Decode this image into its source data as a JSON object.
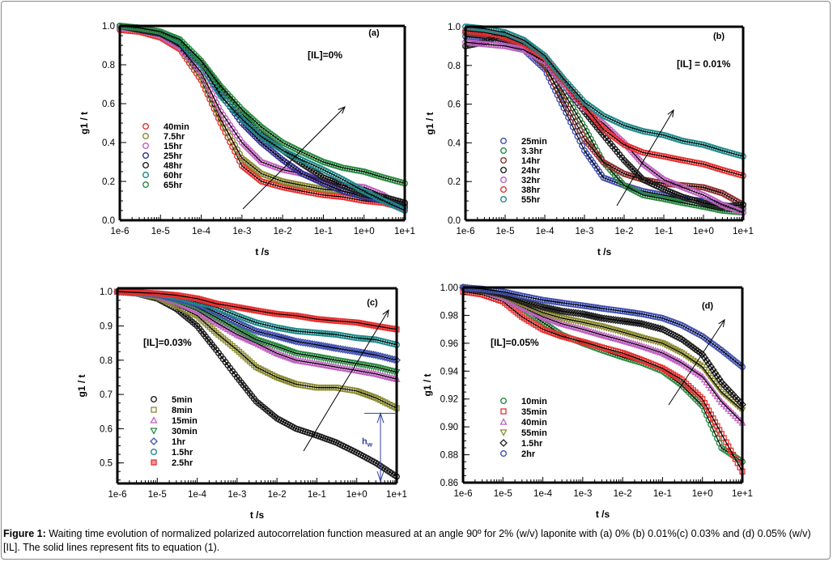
{
  "caption": {
    "label": "Figure 1:",
    "text": " Waiting time evolution of normalized polarized autocorrelation function measured at an angle 90º for 2% (w/v) laponite with (a) 0% (b) 0.01%(c) 0.03% and (d) 0.05% (w/v) [IL]. The solid lines represent fits to equation (1)."
  },
  "chart_data": [
    {
      "type": "scatter",
      "panel": "(a)",
      "annotation": "[IL]=0%",
      "xlabel": "t /s",
      "ylabel": "g1 / t",
      "xscale": "log",
      "xlim": [
        1e-06,
        10
      ],
      "ylim": [
        0.0,
        1.0
      ],
      "xticks": [
        "1e-6",
        "1e-5",
        "1e-4",
        "1e-3",
        "1e-2",
        "1e-1",
        "1e+0",
        "1e+1"
      ],
      "yticks": [
        "0.0",
        "0.2",
        "0.4",
        "0.6",
        "0.8",
        "1.0"
      ],
      "legend_position": "center-left",
      "x": [
        1e-06,
        3e-06,
        1e-05,
        3e-05,
        0.0001,
        0.0003,
        0.001,
        0.003,
        0.01,
        0.03,
        0.1,
        0.3,
        1,
        3,
        10
      ],
      "series": [
        {
          "name": "40min",
          "color": "#e83030",
          "marker": "circle",
          "values": [
            0.98,
            0.97,
            0.94,
            0.88,
            0.72,
            0.5,
            0.28,
            0.2,
            0.17,
            0.15,
            0.13,
            0.12,
            0.1,
            0.09,
            0.06
          ]
        },
        {
          "name": "7.5hr",
          "color": "#8a8a30",
          "marker": "circle",
          "values": [
            0.99,
            0.98,
            0.95,
            0.89,
            0.74,
            0.52,
            0.32,
            0.24,
            0.2,
            0.18,
            0.16,
            0.15,
            0.13,
            0.11,
            0.08
          ]
        },
        {
          "name": "15hr",
          "color": "#c060c0",
          "marker": "circle",
          "values": [
            0.99,
            0.98,
            0.95,
            0.89,
            0.76,
            0.56,
            0.4,
            0.3,
            0.26,
            0.24,
            0.2,
            0.18,
            0.17,
            0.13,
            0.05
          ]
        },
        {
          "name": "25hr",
          "color": "#303090",
          "marker": "circle",
          "values": [
            1.0,
            0.98,
            0.96,
            0.91,
            0.8,
            0.65,
            0.5,
            0.4,
            0.31,
            0.24,
            0.19,
            0.15,
            0.12,
            0.1,
            0.07
          ]
        },
        {
          "name": "48hr",
          "color": "#202020",
          "marker": "circle",
          "values": [
            1.0,
            0.98,
            0.96,
            0.91,
            0.81,
            0.68,
            0.55,
            0.44,
            0.36,
            0.29,
            0.22,
            0.18,
            0.14,
            0.12,
            0.09
          ]
        },
        {
          "name": "60hr",
          "color": "#208a8a",
          "marker": "circle",
          "values": [
            1.0,
            0.99,
            0.97,
            0.92,
            0.8,
            0.64,
            0.52,
            0.43,
            0.36,
            0.31,
            0.26,
            0.21,
            0.15,
            0.1,
            0.05
          ]
        },
        {
          "name": "65hr",
          "color": "#2a8a40",
          "marker": "circle",
          "values": [
            1.0,
            0.99,
            0.97,
            0.93,
            0.82,
            0.69,
            0.57,
            0.48,
            0.4,
            0.35,
            0.3,
            0.27,
            0.25,
            0.22,
            0.19
          ]
        }
      ]
    },
    {
      "type": "scatter",
      "panel": "(b)",
      "annotation": "[IL] = 0.01%",
      "xlabel": "t /s",
      "ylabel": "g1 / t",
      "xscale": "log",
      "xlim": [
        1e-06,
        10
      ],
      "ylim": [
        0.0,
        1.0
      ],
      "xticks": [
        "1e-6",
        "1e-5",
        "1e-4",
        "1e-3",
        "1e-2",
        "1e-1",
        "1e+0",
        "1e+1"
      ],
      "yticks": [
        "0.0",
        "0.2",
        "0.4",
        "0.6",
        "0.8",
        "1.0"
      ],
      "legend_position": "bottom-left",
      "x": [
        1e-06,
        3e-06,
        1e-05,
        3e-05,
        0.0001,
        0.0003,
        0.001,
        0.003,
        0.01,
        0.03,
        0.1,
        0.3,
        1,
        3,
        10
      ],
      "series": [
        {
          "name": "25min",
          "color": "#4050b0",
          "marker": "circle",
          "values": [
            0.95,
            0.94,
            0.92,
            0.88,
            0.78,
            0.58,
            0.36,
            0.22,
            0.18,
            0.15,
            0.13,
            0.11,
            0.1,
            0.08,
            0.06
          ]
        },
        {
          "name": "3.3hr",
          "color": "#2a8a40",
          "marker": "circle",
          "values": [
            0.97,
            0.96,
            0.94,
            0.9,
            0.81,
            0.66,
            0.48,
            0.3,
            0.18,
            0.13,
            0.11,
            0.09,
            0.07,
            0.05,
            0.04
          ]
        },
        {
          "name": "14hr",
          "color": "#903030",
          "marker": "circle",
          "values": [
            0.97,
            0.96,
            0.94,
            0.9,
            0.8,
            0.62,
            0.42,
            0.3,
            0.24,
            0.21,
            0.19,
            0.18,
            0.17,
            0.14,
            0.08
          ]
        },
        {
          "name": "24hr",
          "color": "#202020",
          "marker": "circle",
          "values": [
            0.9,
            0.92,
            0.97,
            0.93,
            0.83,
            0.7,
            0.56,
            0.44,
            0.31,
            0.21,
            0.16,
            0.12,
            0.09,
            0.07,
            0.08
          ]
        },
        {
          "name": "32hr",
          "color": "#c060c0",
          "marker": "circle",
          "values": [
            0.92,
            0.91,
            0.9,
            0.88,
            0.82,
            0.7,
            0.58,
            0.5,
            0.4,
            0.29,
            0.21,
            0.17,
            0.13,
            0.08,
            0.04
          ]
        },
        {
          "name": "38hr",
          "color": "#e83030",
          "marker": "circle",
          "values": [
            0.98,
            0.97,
            0.95,
            0.91,
            0.84,
            0.72,
            0.59,
            0.47,
            0.39,
            0.35,
            0.33,
            0.31,
            0.29,
            0.26,
            0.23
          ]
        },
        {
          "name": "55hr",
          "color": "#208a8a",
          "marker": "circle",
          "values": [
            1.0,
            0.99,
            0.97,
            0.93,
            0.85,
            0.73,
            0.61,
            0.54,
            0.49,
            0.46,
            0.44,
            0.41,
            0.39,
            0.36,
            0.33
          ]
        }
      ]
    },
    {
      "type": "scatter",
      "panel": "(c)",
      "annotation": "[IL]=0.03%",
      "annotation_bracket": "hw",
      "xlabel": "t /s",
      "ylabel": "g1 / t",
      "xscale": "log",
      "xlim": [
        1e-06,
        10
      ],
      "ylim": [
        0.44,
        1.01
      ],
      "xticks": [
        "1e-6",
        "1e-5",
        "1e-4",
        "1e-3",
        "1e-2",
        "1e-1",
        "1e+0",
        "1e+1"
      ],
      "yticks": [
        "0.5",
        "0.6",
        "0.7",
        "0.8",
        "0.9",
        "1.0"
      ],
      "legend_position": "bottom-left",
      "x": [
        1e-06,
        3e-06,
        1e-05,
        3e-05,
        0.0001,
        0.0003,
        0.001,
        0.003,
        0.01,
        0.03,
        0.1,
        0.3,
        1,
        3,
        10
      ],
      "series": [
        {
          "name": "5min",
          "color": "#202020",
          "marker": "circle",
          "values": [
            1.0,
            0.995,
            0.98,
            0.95,
            0.9,
            0.83,
            0.75,
            0.68,
            0.63,
            0.6,
            0.58,
            0.56,
            0.53,
            0.5,
            0.46
          ]
        },
        {
          "name": "8min",
          "color": "#8a8a30",
          "marker": "square",
          "values": [
            1.0,
            0.995,
            0.985,
            0.96,
            0.93,
            0.88,
            0.83,
            0.78,
            0.75,
            0.73,
            0.72,
            0.72,
            0.71,
            0.69,
            0.66
          ]
        },
        {
          "name": "15min",
          "color": "#c060c0",
          "marker": "triangle-up",
          "values": [
            1.0,
            0.997,
            0.99,
            0.97,
            0.945,
            0.91,
            0.875,
            0.85,
            0.82,
            0.8,
            0.79,
            0.78,
            0.77,
            0.76,
            0.745
          ]
        },
        {
          "name": "30min",
          "color": "#2a8a40",
          "marker": "triangle-down",
          "values": [
            1.0,
            0.997,
            0.99,
            0.975,
            0.955,
            0.925,
            0.89,
            0.86,
            0.84,
            0.82,
            0.81,
            0.8,
            0.79,
            0.78,
            0.765
          ]
        },
        {
          "name": "1hr",
          "color": "#4050b0",
          "marker": "diamond",
          "values": [
            1.0,
            0.998,
            0.992,
            0.98,
            0.965,
            0.94,
            0.91,
            0.885,
            0.87,
            0.855,
            0.845,
            0.835,
            0.825,
            0.815,
            0.8
          ]
        },
        {
          "name": "1.5hr",
          "color": "#208a8a",
          "marker": "circle",
          "values": [
            1.0,
            0.998,
            0.994,
            0.985,
            0.97,
            0.955,
            0.93,
            0.91,
            0.895,
            0.885,
            0.88,
            0.875,
            0.865,
            0.86,
            0.845
          ]
        },
        {
          "name": "2.5hr",
          "color": "#e83030",
          "marker": "square-filled",
          "values": [
            1.0,
            0.998,
            0.995,
            0.99,
            0.98,
            0.965,
            0.955,
            0.945,
            0.935,
            0.93,
            0.92,
            0.915,
            0.91,
            0.9,
            0.89
          ]
        }
      ]
    },
    {
      "type": "scatter",
      "panel": "(d)",
      "annotation": "[IL]=0.05%",
      "xlabel": "t /s",
      "ylabel": "g1 / t",
      "xscale": "log",
      "xlim": [
        1e-06,
        10
      ],
      "ylim": [
        0.86,
        1.0
      ],
      "xticks": [
        "1e-6",
        "1e-5",
        "1e-4",
        "1e-3",
        "1e-2",
        "1e-1",
        "1e+0",
        "1e+1"
      ],
      "yticks": [
        "0.86",
        "0.88",
        "0.90",
        "0.92",
        "0.94",
        "0.96",
        "0.98",
        "1.00"
      ],
      "legend_position": "bottom-left",
      "x": [
        1e-06,
        3e-06,
        1e-05,
        3e-05,
        0.0001,
        0.0003,
        0.001,
        0.003,
        0.01,
        0.03,
        0.1,
        0.3,
        1,
        3,
        10
      ],
      "series": [
        {
          "name": "10min",
          "color": "#2a8a40",
          "marker": "circle",
          "values": [
            1.0,
            0.998,
            0.993,
            0.985,
            0.975,
            0.966,
            0.96,
            0.955,
            0.95,
            0.946,
            0.94,
            0.93,
            0.915,
            0.885,
            0.875
          ]
        },
        {
          "name": "35min",
          "color": "#e83030",
          "marker": "square",
          "values": [
            0.997,
            0.995,
            0.99,
            0.979,
            0.97,
            0.965,
            0.961,
            0.957,
            0.953,
            0.948,
            0.942,
            0.934,
            0.92,
            0.895,
            0.868
          ]
        },
        {
          "name": "40min",
          "color": "#c060c0",
          "marker": "triangle-up",
          "values": [
            1.0,
            0.998,
            0.993,
            0.986,
            0.979,
            0.974,
            0.97,
            0.966,
            0.962,
            0.958,
            0.953,
            0.946,
            0.936,
            0.918,
            0.903
          ]
        },
        {
          "name": "55min",
          "color": "#8a8a30",
          "marker": "triangle-down",
          "values": [
            1.0,
            0.998,
            0.994,
            0.988,
            0.982,
            0.978,
            0.975,
            0.972,
            0.968,
            0.964,
            0.96,
            0.953,
            0.943,
            0.925,
            0.912
          ]
        },
        {
          "name": "1.5hr",
          "color": "#202020",
          "marker": "diamond",
          "values": [
            1.0,
            0.998,
            0.995,
            0.99,
            0.986,
            0.983,
            0.981,
            0.978,
            0.976,
            0.974,
            0.97,
            0.963,
            0.952,
            0.932,
            0.916
          ]
        },
        {
          "name": "2hr",
          "color": "#4050b0",
          "marker": "circle",
          "values": [
            1.0,
            0.999,
            0.997,
            0.994,
            0.991,
            0.989,
            0.987,
            0.985,
            0.983,
            0.981,
            0.978,
            0.973,
            0.965,
            0.955,
            0.943
          ]
        }
      ]
    }
  ]
}
